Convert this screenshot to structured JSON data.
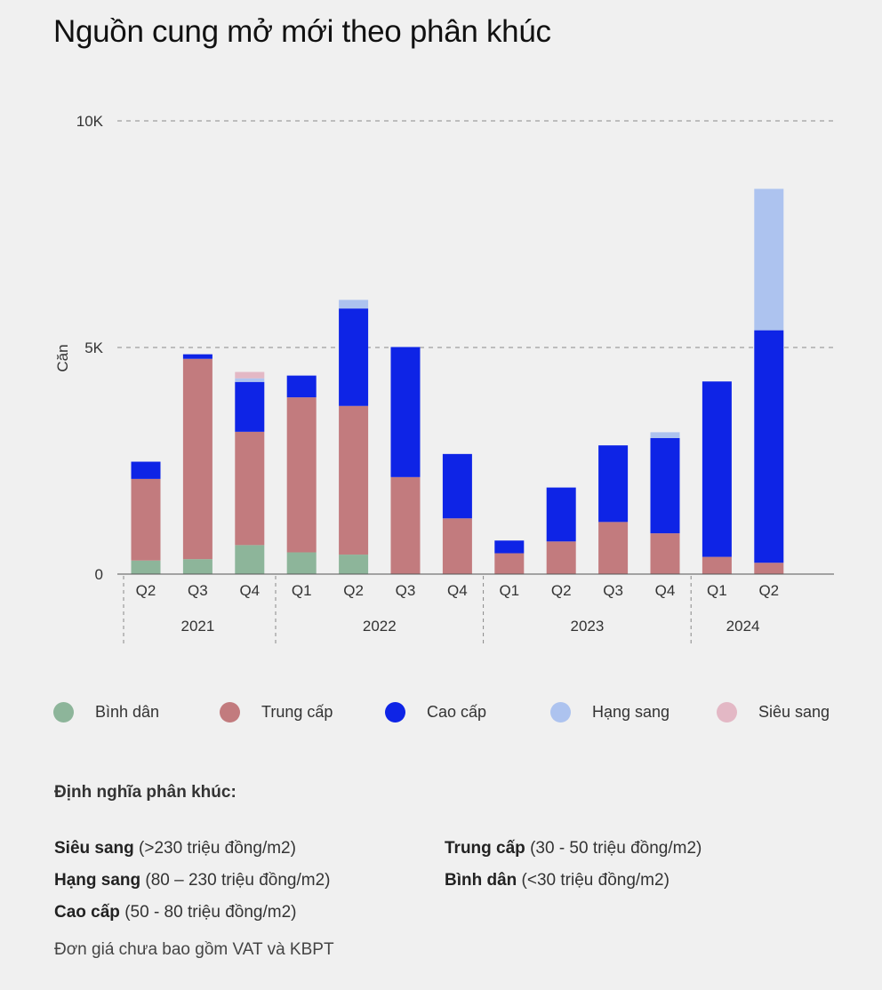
{
  "title": "Nguồn cung mở mới theo phân khúc",
  "chart_data": {
    "type": "bar",
    "stacked": true,
    "title": "Nguồn cung mở mới theo phân khúc",
    "ylabel": "Căn",
    "xlabel": "",
    "ylim": [
      0,
      10000
    ],
    "yticks": [
      {
        "value": 0,
        "label": "0"
      },
      {
        "value": 5000,
        "label": "5K"
      },
      {
        "value": 10000,
        "label": "10K"
      }
    ],
    "grid": true,
    "categories": [
      "Q2",
      "Q3",
      "Q4",
      "Q1",
      "Q2",
      "Q3",
      "Q4",
      "Q1",
      "Q2",
      "Q3",
      "Q4",
      "Q1",
      "Q2"
    ],
    "groups": [
      {
        "label": "2021",
        "count": 3
      },
      {
        "label": "2022",
        "count": 4
      },
      {
        "label": "2023",
        "count": 4
      },
      {
        "label": "2024",
        "count": 2
      }
    ],
    "series": [
      {
        "name": "Bình dân",
        "color": "#8db59a",
        "values": [
          300,
          330,
          640,
          480,
          430,
          0,
          0,
          0,
          0,
          0,
          0,
          0,
          0
        ]
      },
      {
        "name": "Trung cấp",
        "color": "#c27b7e",
        "values": [
          1800,
          4420,
          2500,
          3420,
          3280,
          2140,
          1230,
          460,
          720,
          1150,
          900,
          380,
          250
        ]
      },
      {
        "name": "Cao cấp",
        "color": "#0e24e6",
        "values": [
          380,
          100,
          1100,
          480,
          2150,
          2870,
          1420,
          280,
          1190,
          1690,
          2100,
          3870,
          5130
        ]
      },
      {
        "name": "Hạng sang",
        "color": "#adc3ef",
        "values": [
          0,
          0,
          80,
          0,
          190,
          0,
          0,
          0,
          0,
          0,
          130,
          0,
          3120
        ]
      },
      {
        "name": "Siêu sang",
        "color": "#e3b8c5",
        "values": [
          0,
          0,
          140,
          0,
          0,
          0,
          0,
          0,
          0,
          0,
          0,
          0,
          0
        ]
      }
    ]
  },
  "definitions": {
    "heading": "Định nghĩa phân khúc:",
    "items": [
      {
        "name": "Siêu sang",
        "range": " (>230 triệu đồng/m2)"
      },
      {
        "name": "Hạng sang",
        "range": " (80 – 230 triệu đồng/m2)"
      },
      {
        "name": "Cao cấp",
        "range": " (50 - 80 triệu đồng/m2)"
      },
      {
        "name": "Trung cấp",
        "range": " (30 - 50 triệu đồng/m2)"
      },
      {
        "name": "Bình dân",
        "range": " (<30 triệu đồng/m2)"
      }
    ],
    "note": "Đơn giá chưa bao gồm VAT và KBPT"
  }
}
